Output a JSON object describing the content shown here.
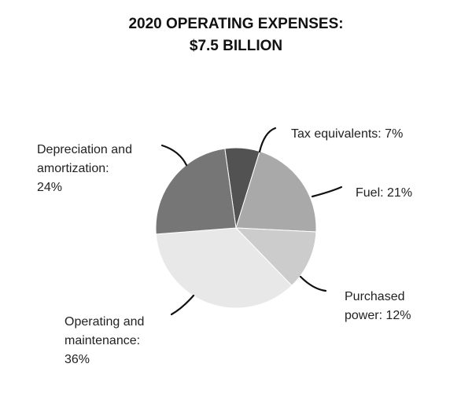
{
  "chart_data": {
    "type": "pie",
    "title_lines": [
      "2020 OPERATING EXPENSES:",
      "$7.5 BILLION"
    ],
    "slices": [
      {
        "label_lines": [
          "Tax equivalents: 7%"
        ],
        "value": 7,
        "color": "#525252"
      },
      {
        "label_lines": [
          "Fuel: 21%"
        ],
        "value": 21,
        "color": "#a9a9a9"
      },
      {
        "label_lines": [
          "Purchased",
          "power: 12%"
        ],
        "value": 12,
        "color": "#cccccc"
      },
      {
        "label_lines": [
          "Operating and",
          "maintenance:",
          "36%"
        ],
        "value": 36,
        "color": "#e8e8e8"
      },
      {
        "label_lines": [
          "Depreciation and",
          "amortization:",
          "24%"
        ],
        "value": 24,
        "color": "#767676"
      }
    ],
    "legend": "none",
    "grid": false
  }
}
